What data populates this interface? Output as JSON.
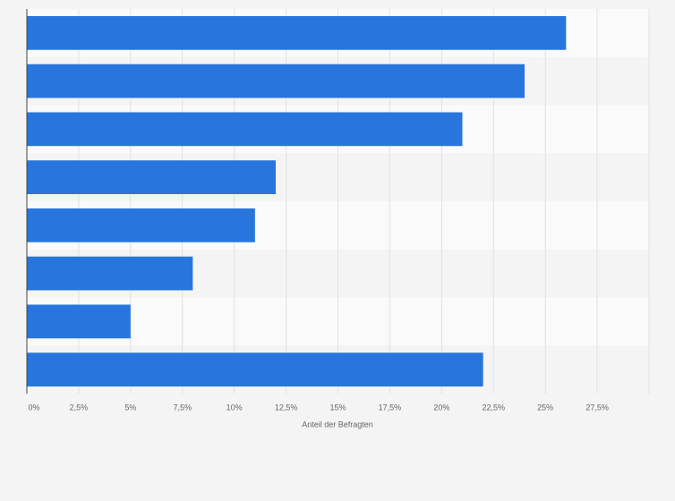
{
  "chart_data": {
    "type": "bar",
    "orientation": "horizontal",
    "categories": [
      null,
      null,
      null,
      null,
      null,
      null,
      null,
      null
    ],
    "values": [
      26,
      24,
      21,
      12,
      11,
      8,
      5,
      22
    ],
    "color": "#2876dd",
    "xlabel": "Anteil der Befragten",
    "xlim": [
      0,
      30
    ],
    "xticks": [
      0,
      {
        "value": 2.5,
        "label": "2,5%"
      },
      {
        "value": 5,
        "label": "5%"
      },
      {
        "value": 7.5,
        "label": "7,5%"
      },
      {
        "value": 10,
        "label": "10%"
      },
      {
        "value": 12.5,
        "label": "12,5%"
      },
      {
        "value": 15,
        "label": "15%"
      },
      {
        "value": 17.5,
        "label": "17,5%"
      },
      {
        "value": 20,
        "label": "20%"
      },
      {
        "value": 22.5,
        "label": "22,5%"
      },
      {
        "value": 25,
        "label": "25%"
      },
      {
        "value": 27.5,
        "label": "27,5%"
      }
    ],
    "xtick_zero_label": "0%",
    "grid": true
  }
}
